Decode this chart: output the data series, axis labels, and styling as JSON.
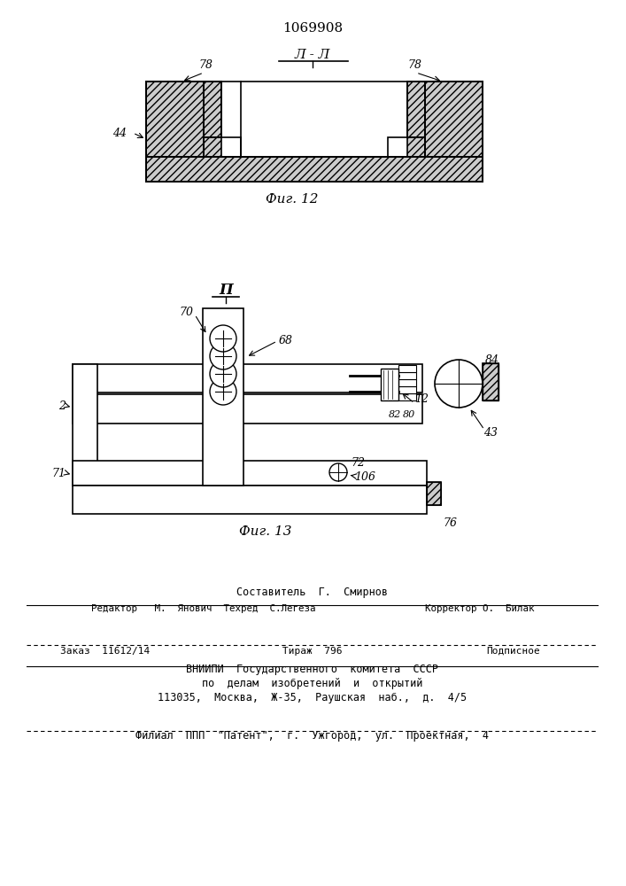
{
  "patent_number": "1069908",
  "fig12_label": "Фиг. 12",
  "fig13_label": "Фиг. 13",
  "section_label": "Л - Л",
  "section2_label": "П",
  "line_color": "#000000",
  "footer_line1": "Составитель  Г.  Смирнов",
  "footer_line2": "Редактор   М.  Янович  Техред  С.Легеза                   Корректор О.  Билак",
  "footer_line3": "Заказ  11612/14",
  "footer_tirazh": "Тираж  796",
  "footer_podp": "Подписное",
  "footer_org1": "ВНИИПИ  Государственного  комитета  СССР",
  "footer_org2": "по  делам  изобретений  и  открытий",
  "footer_org3": "113035,  Москва,  Ж-35,  Раушская  наб.,  д.  4/5",
  "footer_filial": "Филиал  ППП  \"Патент\",  г.  Ужгород,  ул.  Проектная,  4"
}
